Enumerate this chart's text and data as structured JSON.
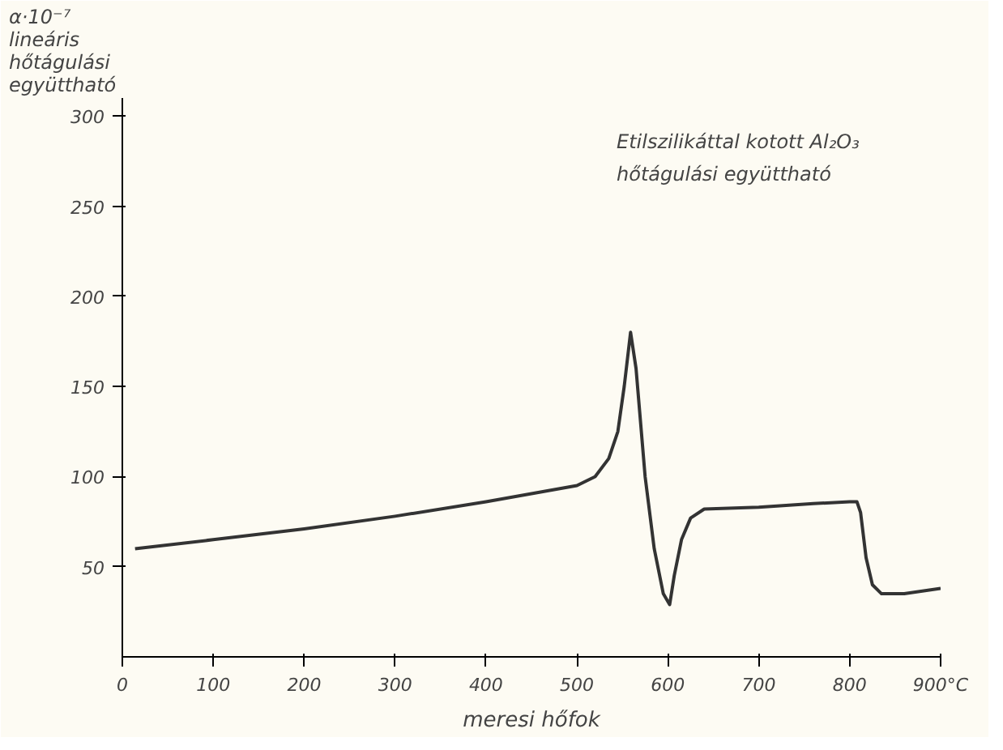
{
  "chart_data": {
    "type": "line",
    "title": "Etilszilikáttal kotott Al₂O₃\nhőtágulási együttható",
    "xlabel": "meresi hőfok",
    "ylabel": "α·10⁻⁷\nlineáris\nhőtágulási\negyüttható",
    "x": [
      14,
      100,
      200,
      300,
      400,
      500,
      520,
      535,
      545,
      552,
      559,
      565,
      575,
      585,
      595,
      602,
      607,
      615,
      625,
      640,
      700,
      760,
      800,
      808,
      812,
      818,
      825,
      835,
      860,
      900
    ],
    "series": [
      {
        "color": "#333333",
        "values": [
          60,
          65,
          71,
          78,
          86,
          95,
          100,
          110,
          125,
          150,
          180,
          160,
          100,
          60,
          35,
          29,
          45,
          65,
          77,
          82,
          83,
          85,
          86,
          86,
          80,
          55,
          40,
          35,
          35,
          38
        ]
      }
    ],
    "xlim": [
      0,
      900
    ],
    "ylim": [
      0,
      310
    ],
    "xticks": [
      0,
      100,
      200,
      300,
      400,
      500,
      600,
      700,
      800,
      {
        "value": 900,
        "label": "900°C"
      }
    ],
    "yticks": [
      50,
      100,
      150,
      200,
      250,
      300
    ],
    "grid": false,
    "marker": "none",
    "line_style": "solid"
  }
}
